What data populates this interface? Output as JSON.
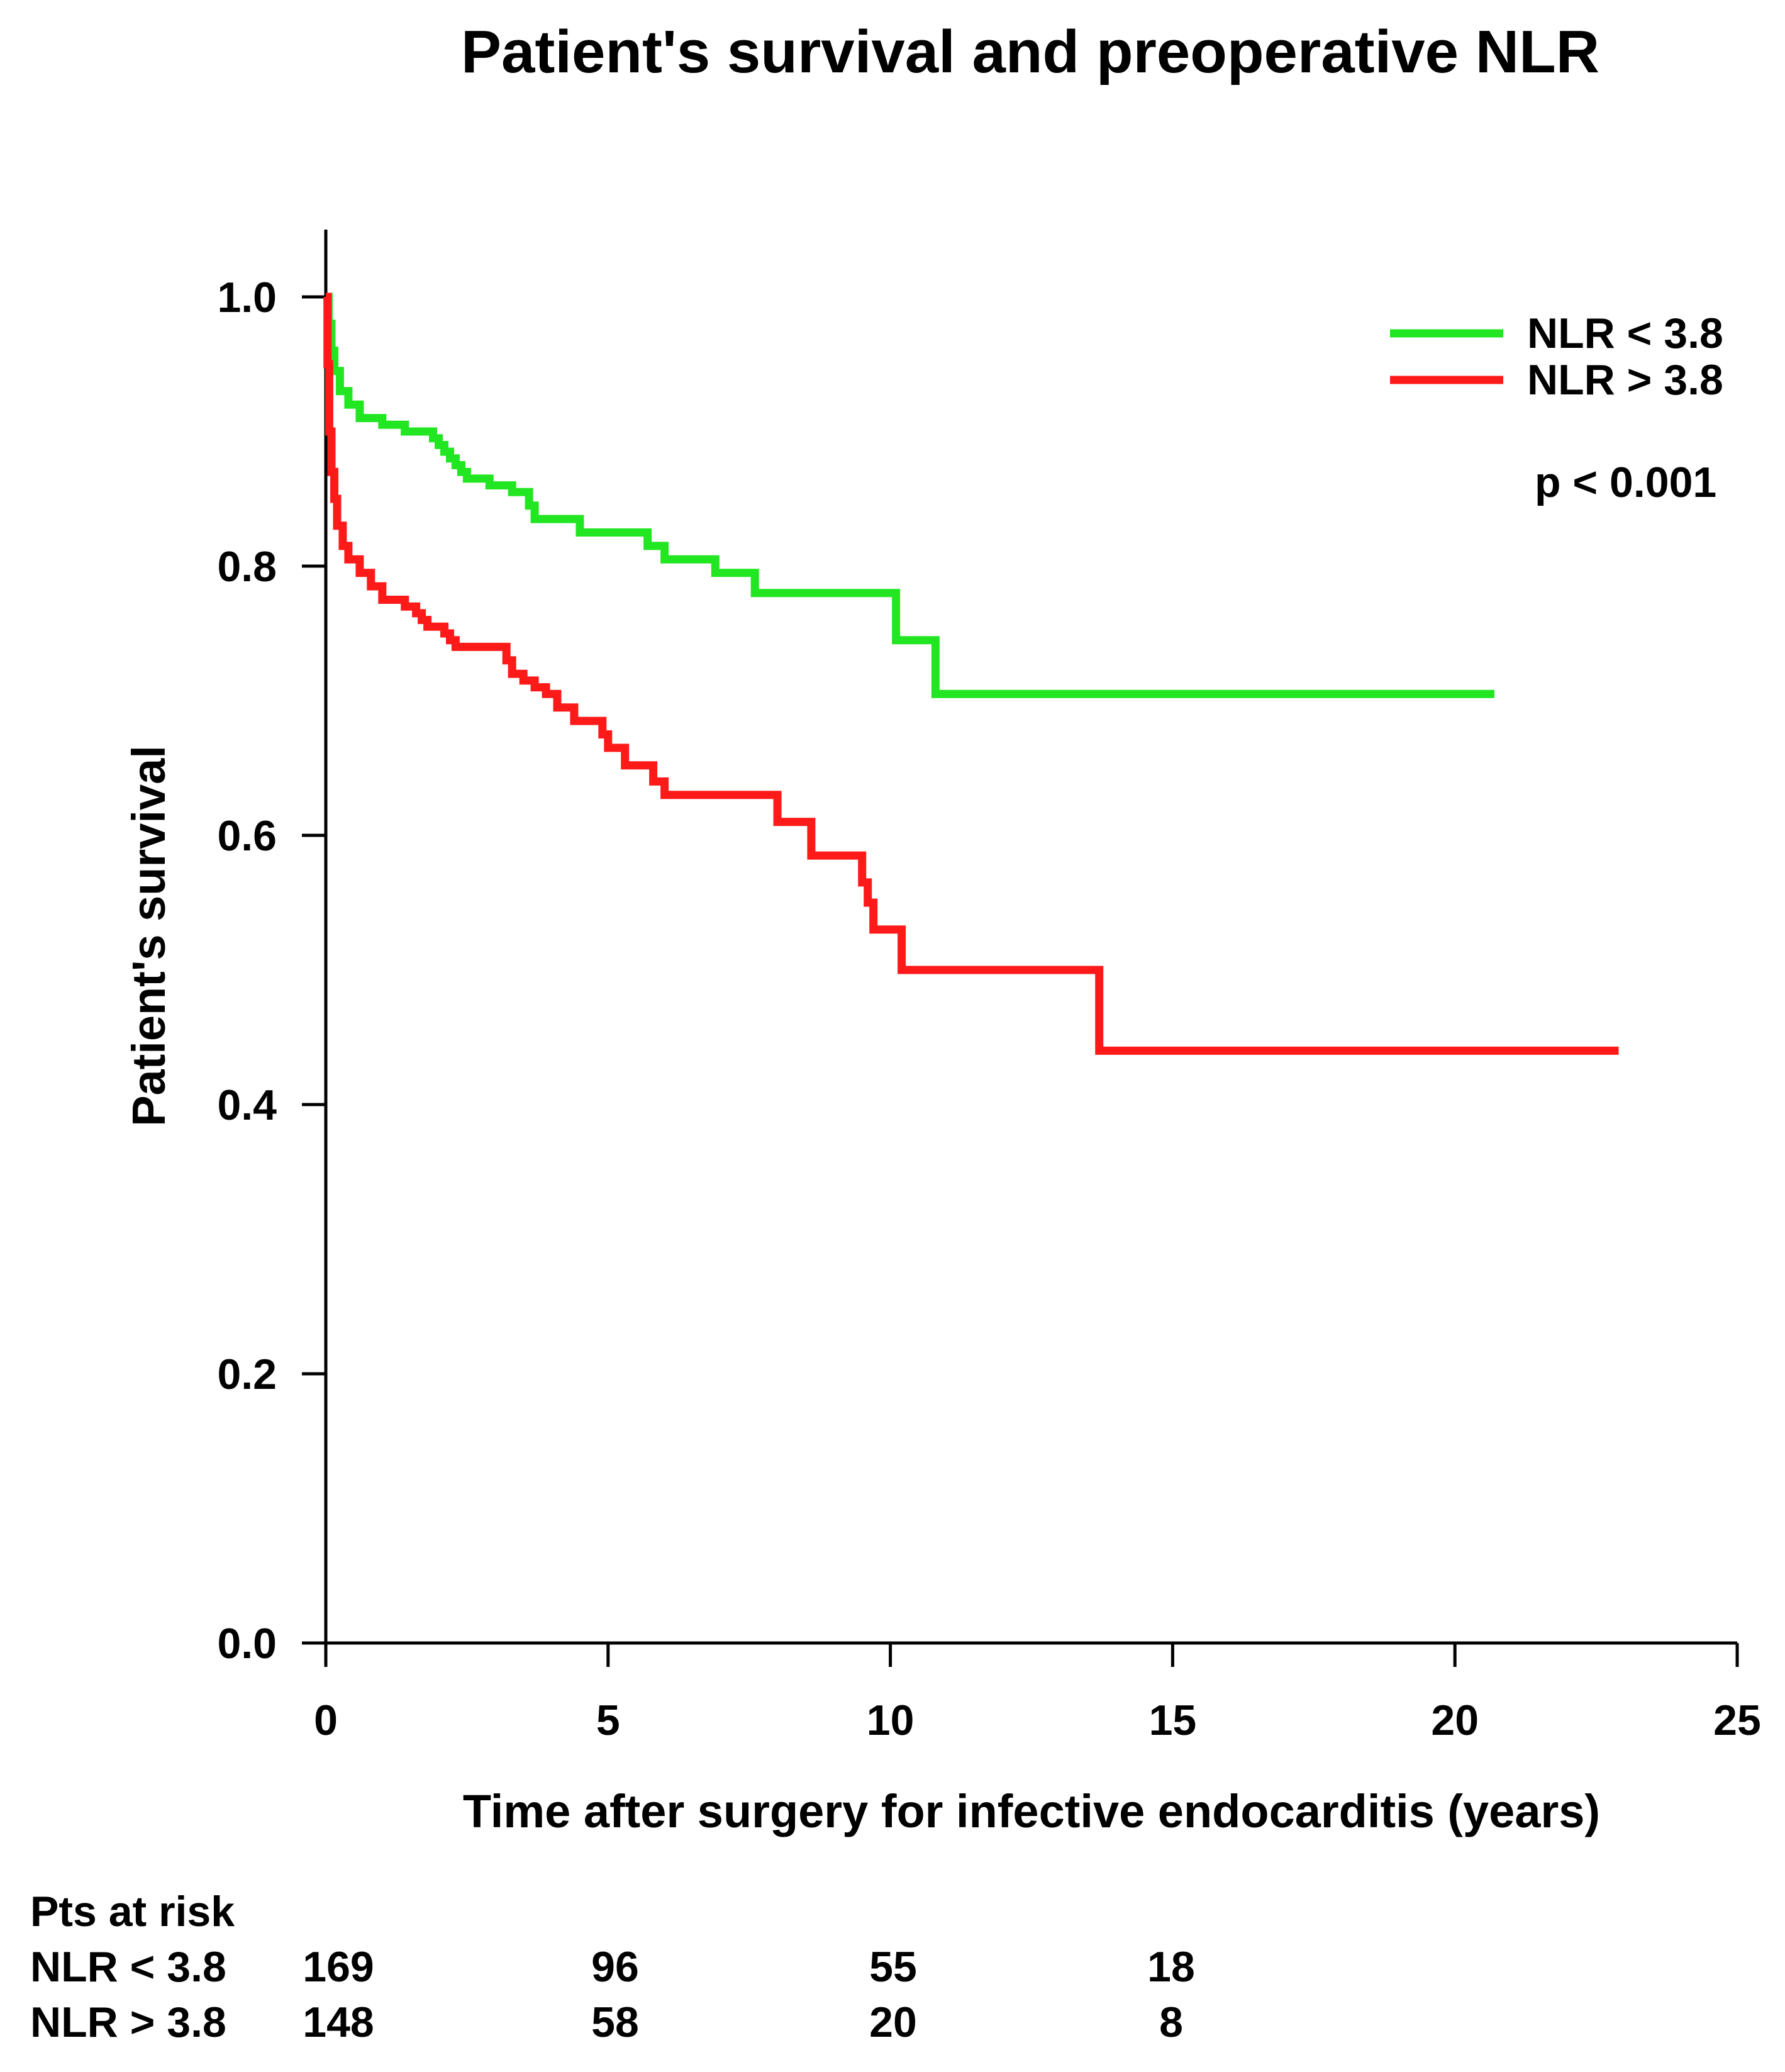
{
  "chart_data": {
    "type": "line",
    "subtype": "kaplan-meier",
    "title": "Patient's survival and preoperative NLR",
    "xlabel": "Time after surgery for infective endocarditis (years)",
    "ylabel": "Patient's survival",
    "xlim": [
      0,
      25
    ],
    "ylim": [
      0,
      1.0
    ],
    "xticks": [
      0,
      5,
      10,
      15,
      20,
      25
    ],
    "xtick_labels": [
      "0",
      "5",
      "10",
      "15",
      "20",
      "25"
    ],
    "yticks": [
      0,
      0.2,
      0.4,
      0.6,
      0.8,
      1.0
    ],
    "ytick_labels": [
      "0.0",
      "0.2",
      "0.4",
      "0.6",
      "0.8",
      "1.0"
    ],
    "legend_position": "top-right",
    "p_value_text": "p < 0.001",
    "series": [
      {
        "name": "NLR < 3.8",
        "color": "#22e622",
        "steps": [
          [
            0,
            1.0
          ],
          [
            0.05,
            0.98
          ],
          [
            0.1,
            0.96
          ],
          [
            0.15,
            0.945
          ],
          [
            0.25,
            0.93
          ],
          [
            0.4,
            0.92
          ],
          [
            0.6,
            0.91
          ],
          [
            1.0,
            0.905
          ],
          [
            1.4,
            0.9
          ],
          [
            1.9,
            0.895
          ],
          [
            2.0,
            0.89
          ],
          [
            2.1,
            0.885
          ],
          [
            2.2,
            0.88
          ],
          [
            2.3,
            0.875
          ],
          [
            2.4,
            0.87
          ],
          [
            2.5,
            0.865
          ],
          [
            2.9,
            0.86
          ],
          [
            3.3,
            0.855
          ],
          [
            3.6,
            0.845
          ],
          [
            3.7,
            0.835
          ],
          [
            4.5,
            0.825
          ],
          [
            5.7,
            0.815
          ],
          [
            6.0,
            0.805
          ],
          [
            6.9,
            0.795
          ],
          [
            7.6,
            0.78
          ],
          [
            10.1,
            0.745
          ],
          [
            10.8,
            0.705
          ],
          [
            20.7,
            0.705
          ]
        ]
      },
      {
        "name": "NLR > 3.8",
        "color": "#ff1a1a",
        "steps": [
          [
            0,
            1.0
          ],
          [
            0.03,
            0.95
          ],
          [
            0.06,
            0.9
          ],
          [
            0.1,
            0.87
          ],
          [
            0.15,
            0.85
          ],
          [
            0.2,
            0.83
          ],
          [
            0.3,
            0.815
          ],
          [
            0.4,
            0.805
          ],
          [
            0.6,
            0.795
          ],
          [
            0.8,
            0.785
          ],
          [
            1.0,
            0.775
          ],
          [
            1.4,
            0.77
          ],
          [
            1.6,
            0.765
          ],
          [
            1.7,
            0.76
          ],
          [
            1.8,
            0.755
          ],
          [
            2.1,
            0.75
          ],
          [
            2.2,
            0.745
          ],
          [
            2.3,
            0.74
          ],
          [
            3.2,
            0.73
          ],
          [
            3.3,
            0.72
          ],
          [
            3.5,
            0.715
          ],
          [
            3.7,
            0.71
          ],
          [
            3.9,
            0.705
          ],
          [
            4.1,
            0.695
          ],
          [
            4.4,
            0.685
          ],
          [
            4.9,
            0.675
          ],
          [
            5.0,
            0.665
          ],
          [
            5.3,
            0.652
          ],
          [
            5.8,
            0.64
          ],
          [
            6.0,
            0.63
          ],
          [
            8.0,
            0.61
          ],
          [
            8.6,
            0.585
          ],
          [
            9.5,
            0.565
          ],
          [
            9.6,
            0.55
          ],
          [
            9.7,
            0.53
          ],
          [
            10.2,
            0.5
          ],
          [
            13.7,
            0.44
          ],
          [
            22.9,
            0.44
          ]
        ]
      }
    ]
  },
  "risk_table": {
    "heading": "Pts at risk",
    "rows": [
      {
        "label": "NLR < 3.8",
        "values": [
          "169",
          "96",
          "55",
          "18"
        ]
      },
      {
        "label": "NLR > 3.8",
        "values": [
          "148",
          "58",
          "20",
          "8"
        ]
      }
    ]
  }
}
